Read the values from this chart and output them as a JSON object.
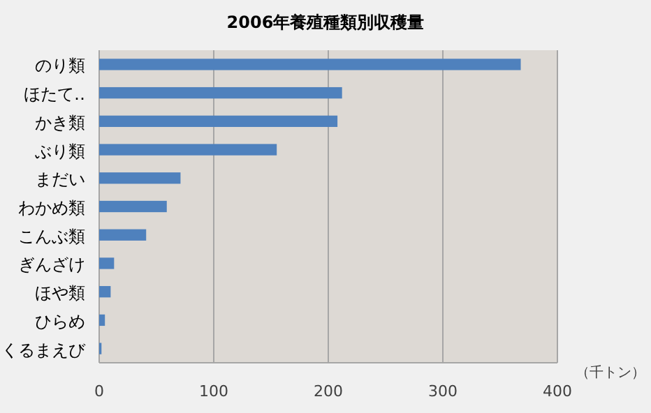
{
  "chart_data": {
    "type": "bar",
    "orientation": "horizontal",
    "title": "2006年養殖種類別収穫量",
    "xlabel": "（千トン）",
    "categories": [
      "のり類",
      "ほたて‥",
      "かき類",
      "ぶり類",
      "まだい",
      "わかめ類",
      "こんぶ類",
      "ぎんざけ",
      "ほや類",
      "ひらめ",
      "くるまえび"
    ],
    "values": [
      368,
      212,
      208,
      155,
      71,
      59,
      41,
      13,
      10,
      5,
      2
    ],
    "color": "#4f81bd",
    "xlim": [
      0,
      400
    ],
    "xticks": [
      0,
      100,
      200,
      300,
      400
    ],
    "grid": "x"
  }
}
